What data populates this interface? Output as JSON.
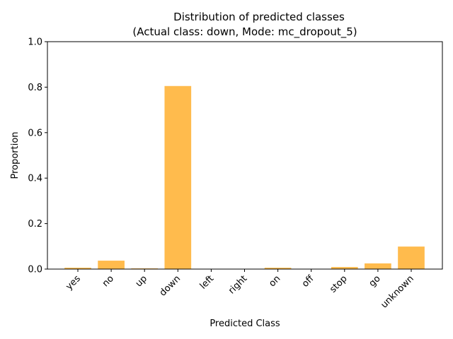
{
  "chart_data": {
    "type": "bar",
    "title": "Distribution of predicted classes",
    "subtitle": "(Actual class: down, Mode: mc_dropout_5)",
    "xlabel": "Predicted Class",
    "ylabel": "Proportion",
    "categories": [
      "yes",
      "no",
      "up",
      "down",
      "left",
      "right",
      "on",
      "off",
      "stop",
      "go",
      "unknown"
    ],
    "values": [
      0.006,
      0.037,
      0.003,
      0.805,
      0.0,
      0.0,
      0.006,
      0.0,
      0.009,
      0.025,
      0.099
    ],
    "ylim": [
      0,
      1.0
    ],
    "yticks": [
      "0.0",
      "0.2",
      "0.4",
      "0.6",
      "0.8",
      "1.0"
    ],
    "bar_color": "#ffbb4d",
    "grid": false,
    "xtick_rotation": 45
  }
}
